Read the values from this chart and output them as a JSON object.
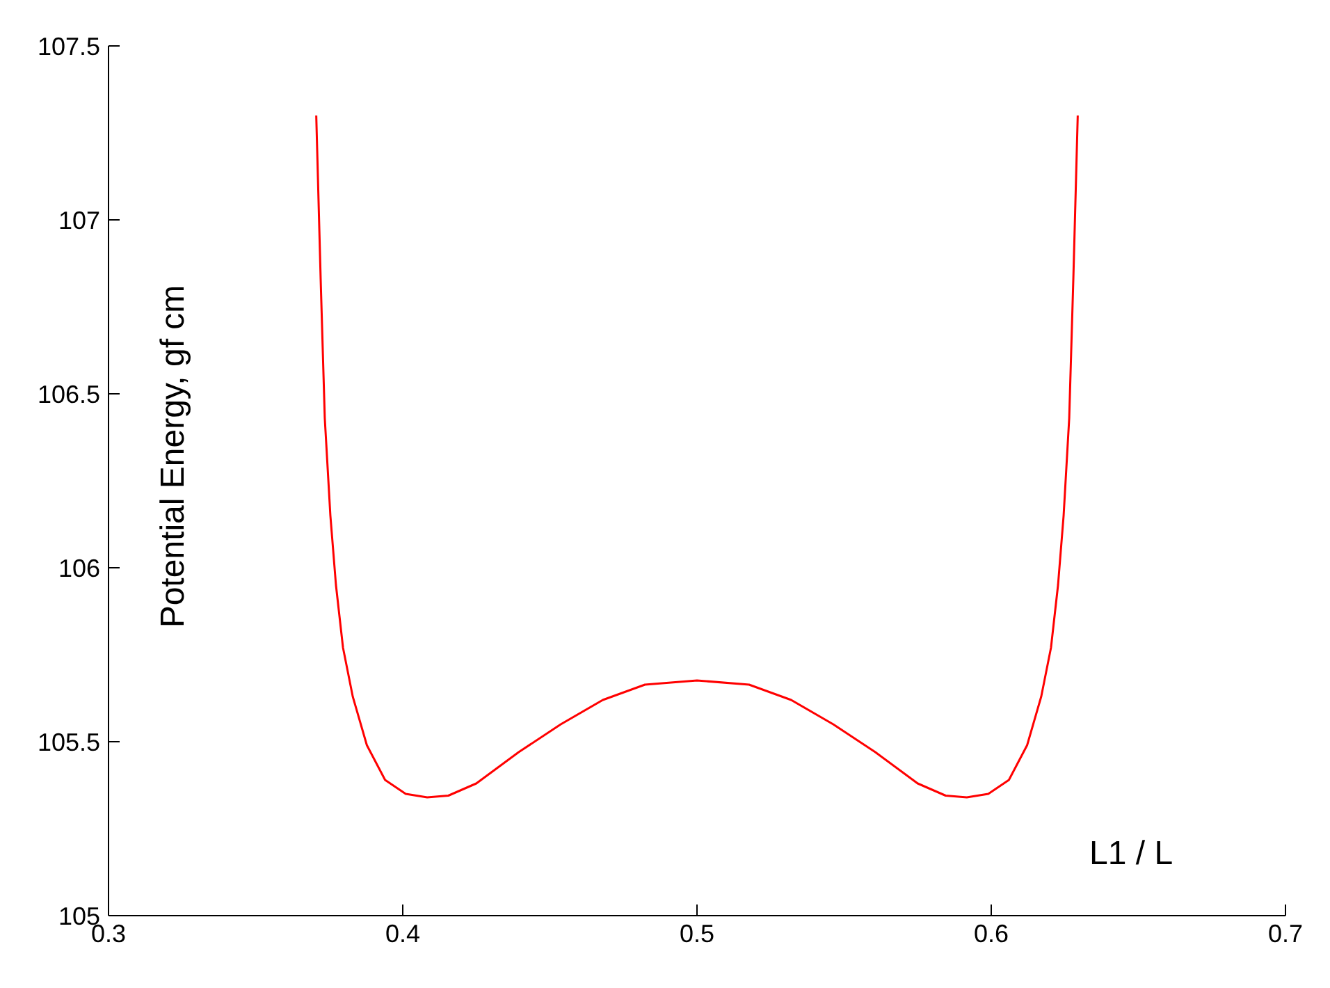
{
  "chart_data": {
    "type": "line",
    "xlabel": "L1 / L",
    "ylabel": "Potential Energy, gf cm",
    "x": [
      0.3706,
      0.3721,
      0.3735,
      0.3754,
      0.3773,
      0.3797,
      0.383,
      0.3878,
      0.394,
      0.401,
      0.4083,
      0.4155,
      0.425,
      0.4394,
      0.4537,
      0.468,
      0.4823,
      0.5,
      0.5177,
      0.532,
      0.5463,
      0.5606,
      0.575,
      0.5845,
      0.5917,
      0.599,
      0.606,
      0.6122,
      0.617,
      0.6203,
      0.6227,
      0.6246,
      0.6265,
      0.6279,
      0.6294
    ],
    "series": [
      {
        "color": "#ff0000",
        "values": [
          107.3,
          106.83,
          106.43,
          106.15,
          105.95,
          105.77,
          105.63,
          105.49,
          105.39,
          105.35,
          105.34,
          105.345,
          105.38,
          105.47,
          105.55,
          105.62,
          105.664,
          105.676,
          105.664,
          105.62,
          105.55,
          105.47,
          105.38,
          105.345,
          105.34,
          105.35,
          105.39,
          105.49,
          105.63,
          105.77,
          105.95,
          106.15,
          106.43,
          106.83,
          107.3
        ]
      }
    ],
    "xlim": [
      0.3,
      0.7
    ],
    "xticks": [
      0.3,
      0.4,
      0.5,
      0.6,
      0.7
    ],
    "ylim": [
      105,
      107.5
    ],
    "yticks": [
      105,
      105.5,
      106,
      106.5,
      107,
      107.5
    ],
    "grid": false,
    "legend": false,
    "marker": "none",
    "line_style": "solid"
  }
}
